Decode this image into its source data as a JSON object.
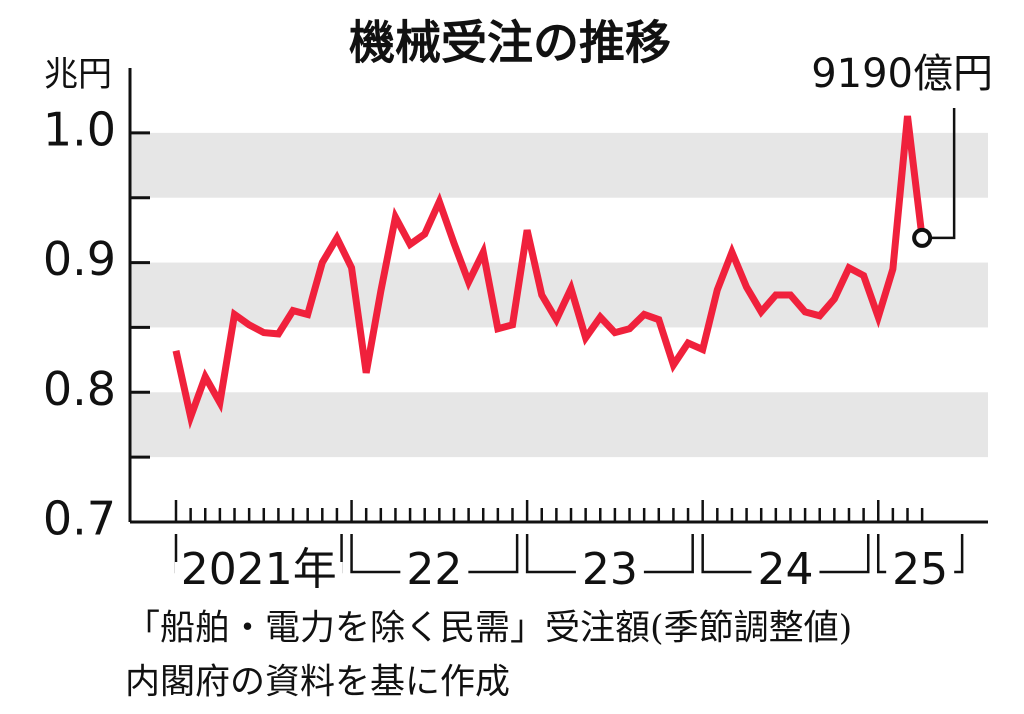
{
  "chart_data": {
    "type": "line",
    "title": "機械受注の推移",
    "y_unit": "兆円",
    "categories": [
      null,
      null,
      null,
      null,
      null,
      null,
      null,
      null,
      null,
      null,
      null,
      null,
      null,
      null,
      null,
      null,
      null,
      null,
      null,
      null,
      null,
      null,
      null,
      null,
      null,
      null,
      null,
      null,
      null,
      null,
      null,
      null,
      null,
      null,
      null,
      null,
      null,
      null,
      null,
      null,
      null,
      null,
      null,
      null,
      null,
      null,
      null,
      null,
      null,
      null,
      null,
      null
    ],
    "year_groups": [
      {
        "label": "2021年",
        "count": 12
      },
      {
        "label": "22",
        "count": 12
      },
      {
        "label": "23",
        "count": 12
      },
      {
        "label": "24",
        "count": 12
      },
      {
        "label": "25",
        "count": 4
      }
    ],
    "series": [
      {
        "name": "「船舶・電力を除く民需」受注額(季節調整値)",
        "color": "#f0213c",
        "values": [
          0.832,
          0.781,
          0.812,
          0.792,
          0.86,
          0.852,
          0.846,
          0.845,
          0.863,
          0.86,
          0.9,
          0.919,
          0.896,
          0.815,
          0.878,
          0.935,
          0.914,
          0.922,
          0.947,
          0.915,
          0.885,
          0.908,
          0.849,
          0.852,
          0.925,
          0.875,
          0.856,
          0.88,
          0.842,
          0.858,
          0.846,
          0.849,
          0.86,
          0.856,
          0.821,
          0.838,
          0.833,
          0.879,
          0.908,
          0.881,
          0.862,
          0.875,
          0.875,
          0.862,
          0.859,
          0.872,
          0.896,
          0.89,
          0.858,
          0.895,
          1.013,
          0.919
        ]
      }
    ],
    "end_label": "9190億円",
    "ylim": [
      0.7,
      1.05
    ],
    "yticks": [
      {
        "value": 0.7,
        "label": "0.7"
      },
      0.8,
      0.9,
      {
        "value": 1,
        "label": "1.0"
      }
    ],
    "yminor": [
      0.75,
      0.85,
      0.95
    ],
    "source": "内閣府の資料を基に作成"
  }
}
